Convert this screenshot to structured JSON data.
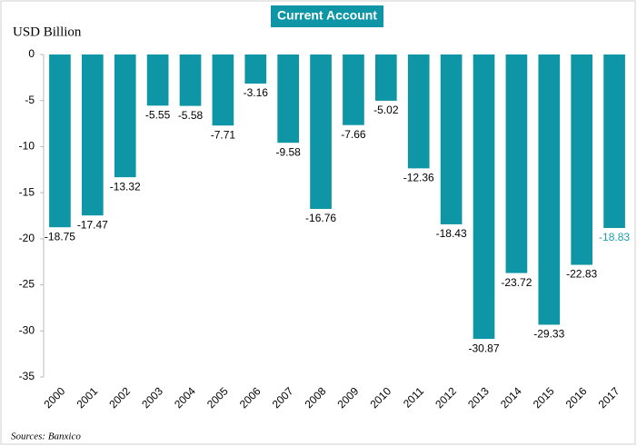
{
  "chart_data": {
    "type": "bar",
    "title": "Current Account",
    "y_axis_label": "USD Billion",
    "source": "Sources: Banxico",
    "categories": [
      "2000",
      "2001",
      "2002",
      "2003",
      "2004",
      "2005",
      "2006",
      "2007",
      "2008",
      "2009",
      "2010",
      "2011",
      "2012",
      "2013",
      "2014",
      "2015",
      "2016",
      "2017"
    ],
    "values": [
      -18.75,
      -17.47,
      -13.32,
      -5.55,
      -5.58,
      -7.71,
      -3.16,
      -9.58,
      -16.76,
      -7.66,
      -5.02,
      -12.36,
      -18.43,
      -30.87,
      -23.72,
      -29.33,
      -22.83,
      -18.83
    ],
    "color": "#0f96a6",
    "value_label_colors": [
      "#000000",
      "#000000",
      "#000000",
      "#000000",
      "#000000",
      "#000000",
      "#000000",
      "#000000",
      "#000000",
      "#000000",
      "#000000",
      "#000000",
      "#000000",
      "#000000",
      "#000000",
      "#000000",
      "#000000",
      "#1a9fb0"
    ],
    "ylim": [
      -35,
      0
    ],
    "yticks": [
      0,
      -5,
      -10,
      -15,
      -20,
      -25,
      -30,
      -35
    ],
    "grid": false
  }
}
